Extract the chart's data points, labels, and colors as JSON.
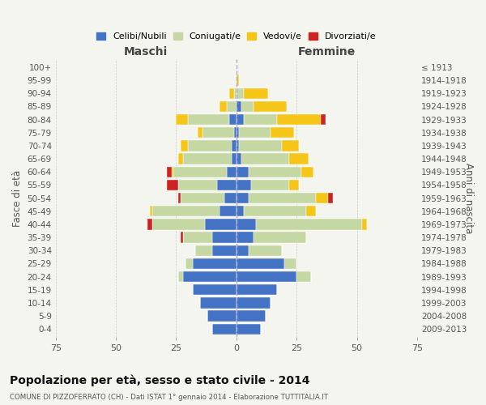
{
  "age_groups": [
    "0-4",
    "5-9",
    "10-14",
    "15-19",
    "20-24",
    "25-29",
    "30-34",
    "35-39",
    "40-44",
    "45-49",
    "50-54",
    "55-59",
    "60-64",
    "65-69",
    "70-74",
    "75-79",
    "80-84",
    "85-89",
    "90-94",
    "95-99",
    "100+"
  ],
  "birth_years": [
    "2009-2013",
    "2004-2008",
    "1999-2003",
    "1994-1998",
    "1989-1993",
    "1984-1988",
    "1979-1983",
    "1974-1978",
    "1969-1973",
    "1964-1968",
    "1959-1963",
    "1954-1958",
    "1949-1953",
    "1944-1948",
    "1939-1943",
    "1934-1938",
    "1929-1933",
    "1924-1928",
    "1919-1923",
    "1914-1918",
    "≤ 1913"
  ],
  "males": {
    "celibi": [
      10,
      12,
      15,
      18,
      22,
      18,
      10,
      10,
      13,
      7,
      5,
      8,
      4,
      2,
      2,
      1,
      3,
      0,
      0,
      0,
      0
    ],
    "coniugati": [
      0,
      0,
      0,
      0,
      2,
      3,
      7,
      12,
      22,
      28,
      18,
      16,
      22,
      20,
      18,
      13,
      17,
      4,
      1,
      0,
      0
    ],
    "vedovi": [
      0,
      0,
      0,
      0,
      0,
      0,
      0,
      0,
      0,
      1,
      0,
      0,
      1,
      2,
      3,
      2,
      5,
      3,
      2,
      0,
      0
    ],
    "divorziati": [
      0,
      0,
      0,
      0,
      0,
      0,
      0,
      1,
      2,
      0,
      1,
      5,
      2,
      0,
      0,
      0,
      0,
      0,
      0,
      0,
      0
    ]
  },
  "females": {
    "nubili": [
      10,
      12,
      14,
      17,
      25,
      20,
      5,
      7,
      8,
      3,
      5,
      6,
      5,
      2,
      1,
      1,
      3,
      2,
      0,
      0,
      0
    ],
    "coniugate": [
      0,
      0,
      0,
      0,
      6,
      5,
      14,
      22,
      44,
      26,
      28,
      16,
      22,
      20,
      18,
      13,
      14,
      5,
      3,
      0,
      0
    ],
    "vedove": [
      0,
      0,
      0,
      0,
      0,
      0,
      0,
      0,
      2,
      4,
      5,
      4,
      5,
      8,
      7,
      10,
      18,
      14,
      10,
      1,
      0
    ],
    "divorziate": [
      0,
      0,
      0,
      0,
      0,
      0,
      0,
      0,
      0,
      0,
      2,
      0,
      0,
      0,
      0,
      0,
      2,
      0,
      0,
      0,
      0
    ]
  },
  "colors": {
    "celibi": "#4472c4",
    "coniugati": "#c5d8a4",
    "vedovi": "#f5c518",
    "divorziati": "#cc2222"
  },
  "title": "Popolazione per età, sesso e stato civile - 2014",
  "subtitle": "COMUNE DI PIZZOFERRATO (CH) - Dati ISTAT 1° gennaio 2014 - Elaborazione TUTTITALIA.IT",
  "xlabel_maschi": "Maschi",
  "xlabel_femmine": "Femmine",
  "ylabel_left": "Fasce di età",
  "ylabel_right": "Anni di nascita",
  "xlim": 75,
  "bg_color": "#f5f5f0",
  "bar_height": 0.82
}
